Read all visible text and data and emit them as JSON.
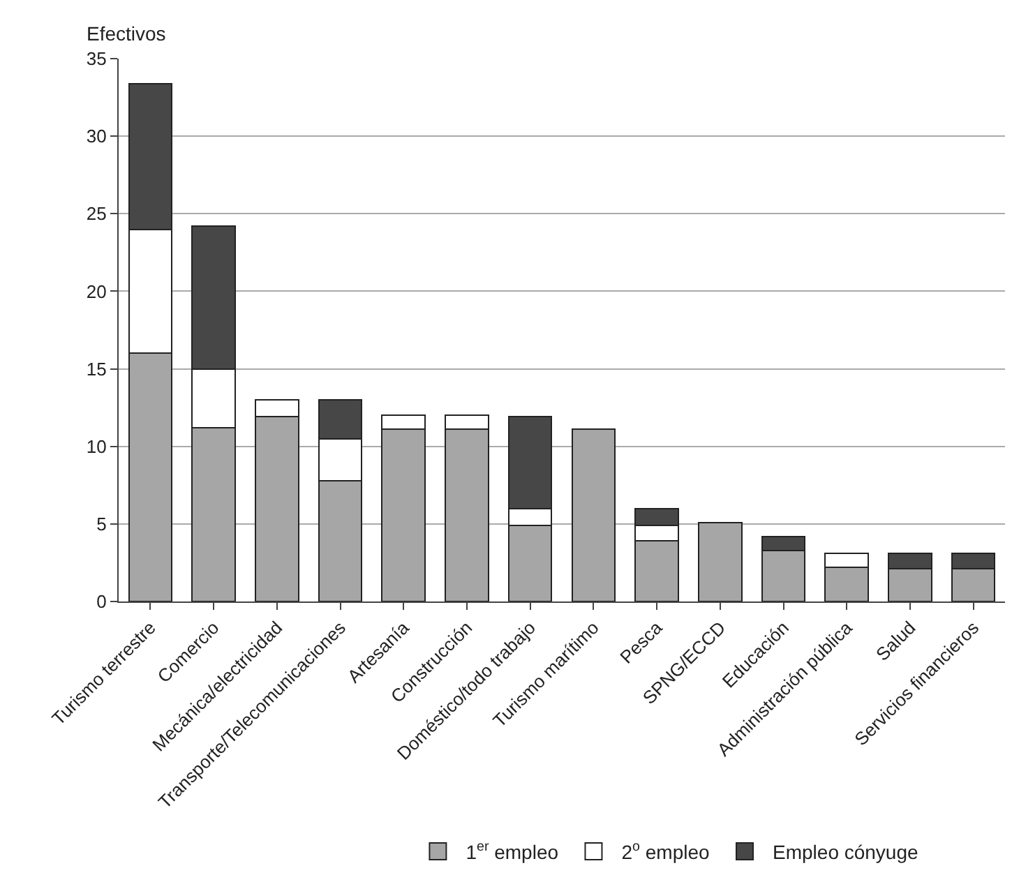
{
  "chart_data": {
    "type": "bar",
    "stacked": true,
    "ylabel": "Efectivos",
    "categories": [
      "Turismo terrestre",
      "Comercio",
      "Mecánica/electricidad",
      "Transporte/Telecomunicaciones",
      "Artesanía",
      "Construcción",
      "Doméstico/todo trabajo",
      "Turismo marítimo",
      "Pesca",
      "SPNG/ECCD",
      "Educación",
      "Administración pública",
      "Salud",
      "Servicios financieros"
    ],
    "series": [
      {
        "name": "1$^{er}$ empleo",
        "color": "#a6a6a6",
        "values": [
          16,
          11.2,
          11.9,
          7.8,
          11.1,
          11.1,
          4.9,
          11.1,
          3.9,
          5.1,
          3.3,
          2.2,
          2.1,
          2.1
        ]
      },
      {
        "name": "2$^{o}$ empleo",
        "color": "#ffffff",
        "values": [
          8,
          3.8,
          1.1,
          2.7,
          0.9,
          0.9,
          1.1,
          null,
          1.0,
          null,
          null,
          0.9,
          null,
          null
        ]
      },
      {
        "name": "Empleo cónyuge",
        "color": "#474747",
        "values": [
          9.4,
          9.2,
          null,
          2.5,
          null,
          null,
          5.9,
          null,
          1.1,
          null,
          0.9,
          null,
          1.0,
          1.0
        ]
      }
    ],
    "ylim": [
      0,
      35
    ],
    "yticks": [
      0,
      5,
      10,
      15,
      20,
      25,
      30,
      35
    ],
    "grid": "y",
    "legend": "bottom"
  }
}
